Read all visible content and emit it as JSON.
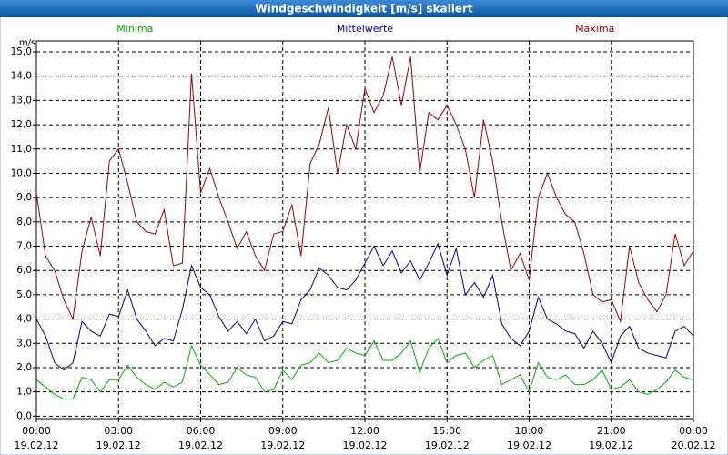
{
  "chart_data": {
    "type": "line",
    "title": "Windgeschwindigkeit [m/s] skaliert",
    "y_label": "m/s",
    "x": [
      0,
      20,
      40,
      60,
      80,
      100,
      120,
      140,
      160,
      180,
      200,
      220,
      240,
      260,
      280,
      300,
      320,
      340,
      360,
      380,
      400,
      420,
      440,
      460,
      480,
      500,
      520,
      540,
      560,
      580,
      600,
      620,
      640,
      660,
      680,
      700,
      720,
      740,
      760,
      780,
      800,
      820,
      840,
      860,
      880,
      900,
      920,
      940,
      960,
      980,
      1000,
      1020,
      1040,
      1060,
      1080,
      1100,
      1120,
      1140,
      1160,
      1180,
      1200,
      1220,
      1240,
      1260,
      1280,
      1300,
      1320,
      1340,
      1360,
      1380,
      1400,
      1420,
      1440
    ],
    "xlim": [
      0,
      1440
    ],
    "xticks": [
      {
        "value": 0,
        "label": "00:00",
        "date": "19.02.12"
      },
      {
        "value": 180,
        "label": "03:00",
        "date": "19.02.12"
      },
      {
        "value": 360,
        "label": "06:00",
        "date": "19.02.12"
      },
      {
        "value": 540,
        "label": "09:00",
        "date": "19.02.12"
      },
      {
        "value": 720,
        "label": "12:00",
        "date": "19.02.12"
      },
      {
        "value": 900,
        "label": "15:00",
        "date": "19.02.12"
      },
      {
        "value": 1080,
        "label": "18:00",
        "date": "19.02.12"
      },
      {
        "value": 1260,
        "label": "21:00",
        "date": "19.02.12"
      },
      {
        "value": 1440,
        "label": "00:00",
        "date": "20.02.12"
      }
    ],
    "ylim": [
      -0.1,
      15.45
    ],
    "yticks": [
      {
        "value": 0,
        "label": "0,0"
      },
      {
        "value": 1,
        "label": "1,0"
      },
      {
        "value": 2,
        "label": "2,0"
      },
      {
        "value": 3,
        "label": "3,0"
      },
      {
        "value": 4,
        "label": "4,0"
      },
      {
        "value": 5,
        "label": "5,0"
      },
      {
        "value": 6,
        "label": "6,0"
      },
      {
        "value": 7,
        "label": "7,0"
      },
      {
        "value": 8,
        "label": "8,0"
      },
      {
        "value": 9,
        "label": "9,0"
      },
      {
        "value": 10,
        "label": "10,0"
      },
      {
        "value": 11,
        "label": "11,0"
      },
      {
        "value": 12,
        "label": "12,0"
      },
      {
        "value": 13,
        "label": "13,0"
      },
      {
        "value": 14,
        "label": "14,0"
      },
      {
        "value": 15,
        "label": "15,0"
      }
    ],
    "grid": true,
    "series": [
      {
        "name": "Minima",
        "color": "#00b000",
        "values": [
          1.5,
          1.2,
          0.9,
          0.7,
          0.7,
          1.6,
          1.5,
          1.0,
          1.5,
          1.5,
          2.1,
          1.6,
          1.3,
          1.1,
          1.4,
          1.2,
          1.4,
          2.9,
          2.1,
          1.7,
          1.3,
          1.4,
          2.0,
          1.7,
          1.6,
          1.0,
          1.1,
          1.9,
          1.5,
          2.1,
          2.2,
          2.6,
          2.2,
          2.3,
          2.8,
          2.6,
          2.5,
          3.1,
          2.3,
          2.3,
          2.6,
          3.1,
          1.8,
          2.8,
          3.2,
          2.2,
          2.5,
          2.6,
          2.0,
          2.3,
          2.5,
          1.3,
          1.5,
          1.7,
          1.0,
          2.2,
          1.6,
          1.5,
          1.7,
          1.3,
          1.3,
          1.5,
          1.9,
          1.1,
          1.2,
          1.5,
          1.0,
          0.9,
          1.1,
          1.4,
          1.9,
          1.6,
          1.5
        ]
      },
      {
        "name": "Mittelwerte",
        "color": "#0000a0",
        "values": [
          4.0,
          3.3,
          2.2,
          1.9,
          2.2,
          3.9,
          3.5,
          3.3,
          4.2,
          4.1,
          5.2,
          4.0,
          3.5,
          2.9,
          3.2,
          3.1,
          4.4,
          6.2,
          5.3,
          5.0,
          4.1,
          3.5,
          3.9,
          3.4,
          4.0,
          3.1,
          3.3,
          3.9,
          3.8,
          4.8,
          5.2,
          6.1,
          5.8,
          5.3,
          5.2,
          5.6,
          6.3,
          7.0,
          6.2,
          6.8,
          5.9,
          6.4,
          5.6,
          6.3,
          7.1,
          5.8,
          6.9,
          5.0,
          5.5,
          4.9,
          5.8,
          3.8,
          3.2,
          2.9,
          3.5,
          4.9,
          4.0,
          3.8,
          3.5,
          3.4,
          2.8,
          3.5,
          3.0,
          2.2,
          3.3,
          3.7,
          2.8,
          2.6,
          2.5,
          2.4,
          3.5,
          3.7,
          3.3
        ]
      },
      {
        "name": "Maxima",
        "color": "#a00000",
        "values": [
          9.2,
          6.6,
          6.0,
          4.8,
          4.0,
          6.8,
          8.2,
          6.6,
          10.5,
          11.0,
          9.6,
          8.0,
          7.6,
          7.5,
          8.5,
          6.2,
          6.3,
          14.1,
          9.2,
          10.2,
          9.0,
          8.0,
          6.9,
          7.6,
          6.6,
          6.0,
          7.5,
          7.6,
          8.7,
          6.6,
          10.4,
          11.2,
          12.7,
          10.0,
          12.0,
          11.0,
          13.5,
          12.5,
          13.2,
          14.8,
          12.8,
          14.8,
          10.0,
          12.5,
          12.2,
          12.8,
          12.0,
          11.0,
          9.0,
          12.2,
          10.5,
          8.0,
          6.0,
          6.7,
          5.6,
          9.0,
          10.0,
          9.0,
          8.3,
          8.0,
          6.7,
          5.0,
          4.7,
          4.8,
          3.9,
          7.0,
          5.5,
          4.8,
          4.3,
          5.0,
          7.5,
          6.2,
          6.8
        ]
      }
    ]
  }
}
